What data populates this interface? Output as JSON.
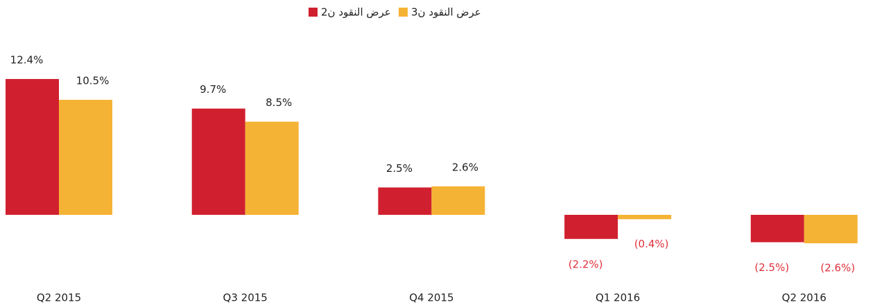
{
  "chart_data": {
    "type": "bar",
    "categories": [
      "Q2 2015",
      "Q3 2015",
      "Q4 2015",
      "Q1 2016",
      "Q2 2016"
    ],
    "series": [
      {
        "name": "عرض النقود ن2",
        "color": "#d0202f",
        "values": [
          12.4,
          9.7,
          2.5,
          -2.2,
          -2.5
        ],
        "value_labels": [
          "12.4%",
          "9.7%",
          "2.5%",
          "(2.2%)",
          "(2.5%)"
        ]
      },
      {
        "name": "عرض النقود ن3",
        "color": "#f5b335",
        "values": [
          10.5,
          8.5,
          2.6,
          -0.4,
          -2.6
        ],
        "value_labels": [
          "10.5%",
          "8.5%",
          "2.6%",
          "(0.4%)",
          "(2.6%)"
        ]
      }
    ]
  }
}
